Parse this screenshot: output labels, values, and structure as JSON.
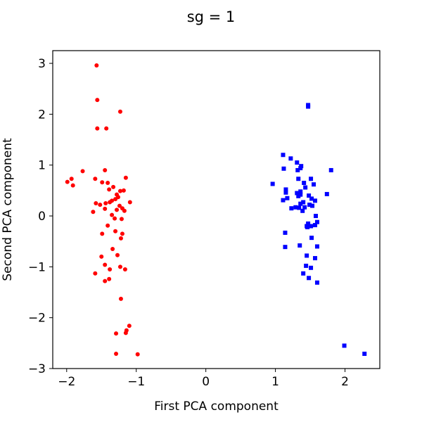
{
  "chart_data": {
    "type": "scatter",
    "title": "sg = 1",
    "xlabel": "First PCA component",
    "ylabel": "Second PCA component",
    "xlim": [
      -2.2,
      2.5
    ],
    "ylim": [
      -3.0,
      3.25
    ],
    "xticks": [
      -2,
      -1,
      0,
      1,
      2
    ],
    "xtick_labels": [
      "−2",
      "−1",
      "0",
      "1",
      "2"
    ],
    "yticks": [
      -3,
      -2,
      -1,
      0,
      1,
      2,
      3
    ],
    "ytick_labels": [
      "−3",
      "−2",
      "−1",
      "0",
      "1",
      "2",
      "3"
    ],
    "grid": false,
    "series": [
      {
        "color": "#ff0000",
        "marker": "circle",
        "points": [
          [
            -1.57,
            2.96
          ],
          [
            -1.56,
            2.28
          ],
          [
            -1.23,
            2.05
          ],
          [
            -1.56,
            1.72
          ],
          [
            -1.43,
            1.72
          ],
          [
            -1.77,
            0.88
          ],
          [
            -1.45,
            0.9
          ],
          [
            -1.93,
            0.73
          ],
          [
            -1.59,
            0.73
          ],
          [
            -1.99,
            0.67
          ],
          [
            -1.91,
            0.6
          ],
          [
            -1.15,
            0.75
          ],
          [
            -1.49,
            0.66
          ],
          [
            -1.41,
            0.65
          ],
          [
            -1.33,
            0.57
          ],
          [
            -1.39,
            0.52
          ],
          [
            -1.23,
            0.49
          ],
          [
            -1.18,
            0.5
          ],
          [
            -1.28,
            0.42
          ],
          [
            -1.26,
            0.37
          ],
          [
            -1.3,
            0.33
          ],
          [
            -1.35,
            0.3
          ],
          [
            -1.38,
            0.27
          ],
          [
            -1.44,
            0.25
          ],
          [
            -1.58,
            0.25
          ],
          [
            -1.52,
            0.22
          ],
          [
            -1.09,
            0.27
          ],
          [
            -1.24,
            0.2
          ],
          [
            -1.2,
            0.15
          ],
          [
            -1.28,
            0.12
          ],
          [
            -1.17,
            0.1
          ],
          [
            -1.62,
            0.08
          ],
          [
            -1.45,
            0.14
          ],
          [
            -1.35,
            0.02
          ],
          [
            -1.31,
            -0.05
          ],
          [
            -1.21,
            -0.06
          ],
          [
            -1.41,
            -0.19
          ],
          [
            -1.3,
            -0.3
          ],
          [
            -1.49,
            -0.35
          ],
          [
            -1.2,
            -0.35
          ],
          [
            -1.22,
            -0.44
          ],
          [
            -1.34,
            -0.65
          ],
          [
            -1.27,
            -0.77
          ],
          [
            -1.5,
            -0.8
          ],
          [
            -1.45,
            -0.96
          ],
          [
            -1.23,
            -1.0
          ],
          [
            -1.16,
            -1.05
          ],
          [
            -1.38,
            -1.05
          ],
          [
            -1.59,
            -1.13
          ],
          [
            -1.39,
            -1.24
          ],
          [
            -1.45,
            -1.28
          ],
          [
            -1.22,
            -1.63
          ],
          [
            -1.1,
            -2.16
          ],
          [
            -1.14,
            -2.25
          ],
          [
            -1.15,
            -2.3
          ],
          [
            -1.29,
            -2.31
          ],
          [
            -1.29,
            -2.71
          ],
          [
            -0.98,
            -2.72
          ]
        ]
      },
      {
        "color": "#0000ff",
        "marker": "square",
        "points": [
          [
            1.47,
            2.18
          ],
          [
            1.47,
            2.15
          ],
          [
            1.11,
            1.2
          ],
          [
            1.22,
            1.13
          ],
          [
            1.31,
            1.05
          ],
          [
            1.37,
            0.98
          ],
          [
            1.12,
            0.93
          ],
          [
            1.36,
            0.94
          ],
          [
            1.8,
            0.9
          ],
          [
            1.32,
            0.9
          ],
          [
            1.51,
            0.73
          ],
          [
            1.33,
            0.73
          ],
          [
            0.96,
            0.63
          ],
          [
            1.41,
            0.65
          ],
          [
            1.55,
            0.62
          ],
          [
            1.15,
            0.52
          ],
          [
            1.43,
            0.56
          ],
          [
            1.15,
            0.46
          ],
          [
            1.36,
            0.48
          ],
          [
            1.31,
            0.45
          ],
          [
            1.74,
            0.43
          ],
          [
            1.36,
            0.42
          ],
          [
            1.48,
            0.4
          ],
          [
            1.33,
            0.39
          ],
          [
            1.17,
            0.35
          ],
          [
            1.11,
            0.31
          ],
          [
            1.52,
            0.34
          ],
          [
            1.57,
            0.3
          ],
          [
            1.4,
            0.27
          ],
          [
            1.49,
            0.22
          ],
          [
            1.36,
            0.24
          ],
          [
            1.53,
            0.2
          ],
          [
            1.42,
            0.17
          ],
          [
            1.34,
            0.16
          ],
          [
            1.23,
            0.15
          ],
          [
            1.29,
            0.17
          ],
          [
            1.39,
            0.1
          ],
          [
            1.58,
            0.0
          ],
          [
            1.47,
            -0.15
          ],
          [
            1.6,
            -0.12
          ],
          [
            1.51,
            -0.2
          ],
          [
            1.45,
            -0.2
          ],
          [
            1.57,
            -0.18
          ],
          [
            1.46,
            -0.22
          ],
          [
            1.14,
            -0.33
          ],
          [
            1.52,
            -0.43
          ],
          [
            1.14,
            -0.61
          ],
          [
            1.35,
            -0.58
          ],
          [
            1.6,
            -0.6
          ],
          [
            1.45,
            -0.78
          ],
          [
            1.57,
            -0.83
          ],
          [
            1.44,
            -0.98
          ],
          [
            1.51,
            -1.02
          ],
          [
            1.4,
            -1.13
          ],
          [
            1.48,
            -1.22
          ],
          [
            1.6,
            -1.31
          ],
          [
            1.99,
            -2.55
          ],
          [
            2.28,
            -2.71
          ]
        ]
      }
    ]
  }
}
